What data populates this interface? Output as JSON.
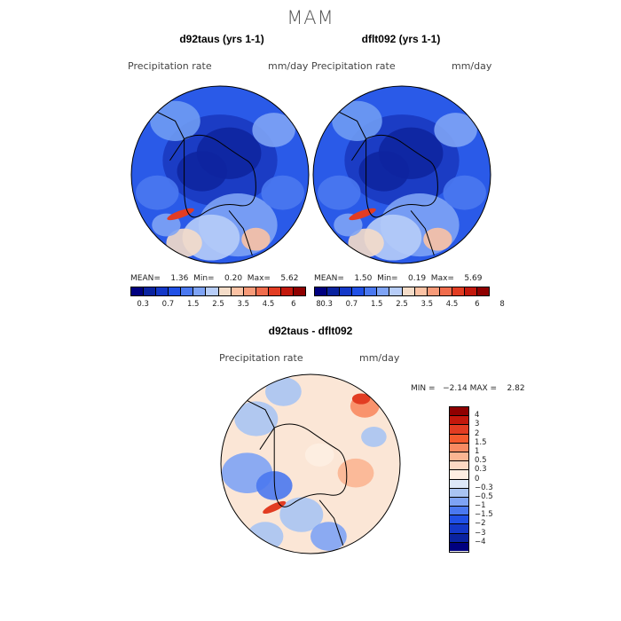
{
  "figure": {
    "season": "MAM"
  },
  "panels": [
    {
      "title": "d92taus (yrs 1-1)",
      "variable": "Precipitation rate",
      "units": "mm/day",
      "stats": "MEAN=    1.36  Min=    0.20  Max=    5.62"
    },
    {
      "title": "dflt092 (yrs 1-1)",
      "variable": "Precipitation rate",
      "units": "mm/day",
      "stats": "MEAN=    1.50  Min=    0.19  Max=    5.69"
    }
  ],
  "diff_panel": {
    "title": "d92taus - dflt092",
    "variable": "Precipitation rate",
    "units": "mm/day",
    "stats": "MIN =   −2.14 MAX =    2.82"
  },
  "colorbar_abs": {
    "colors": [
      "#00007f",
      "#0a23a0",
      "#1438c8",
      "#2050e6",
      "#4a78f0",
      "#7ea3f5",
      "#b7cdf8",
      "#f4dcc8",
      "#fbc2a4",
      "#f79a78",
      "#f06c4c",
      "#e23c22",
      "#c3180c",
      "#8f0000"
    ],
    "labels": [
      "0.3",
      "0.7",
      "1.5",
      "2.5",
      "3.5",
      "4.5",
      "6",
      "8"
    ]
  },
  "colorbar_diff": {
    "colors": [
      "#8f0000",
      "#c3180c",
      "#e23c22",
      "#f55a2e",
      "#f88a62",
      "#fbb592",
      "#fcd8c2",
      "#fdeee2",
      "#dde8f8",
      "#a9c4f3",
      "#7ea3f5",
      "#4a78f0",
      "#2050e6",
      "#1438c8",
      "#0a23a0",
      "#00007f"
    ],
    "labels": [
      "4",
      "3",
      "2",
      "1.5",
      "1",
      "0.5",
      "0.3",
      "0",
      "−0.3",
      "−0.5",
      "−1",
      "−1.5",
      "−2",
      "−3",
      "−4"
    ]
  }
}
